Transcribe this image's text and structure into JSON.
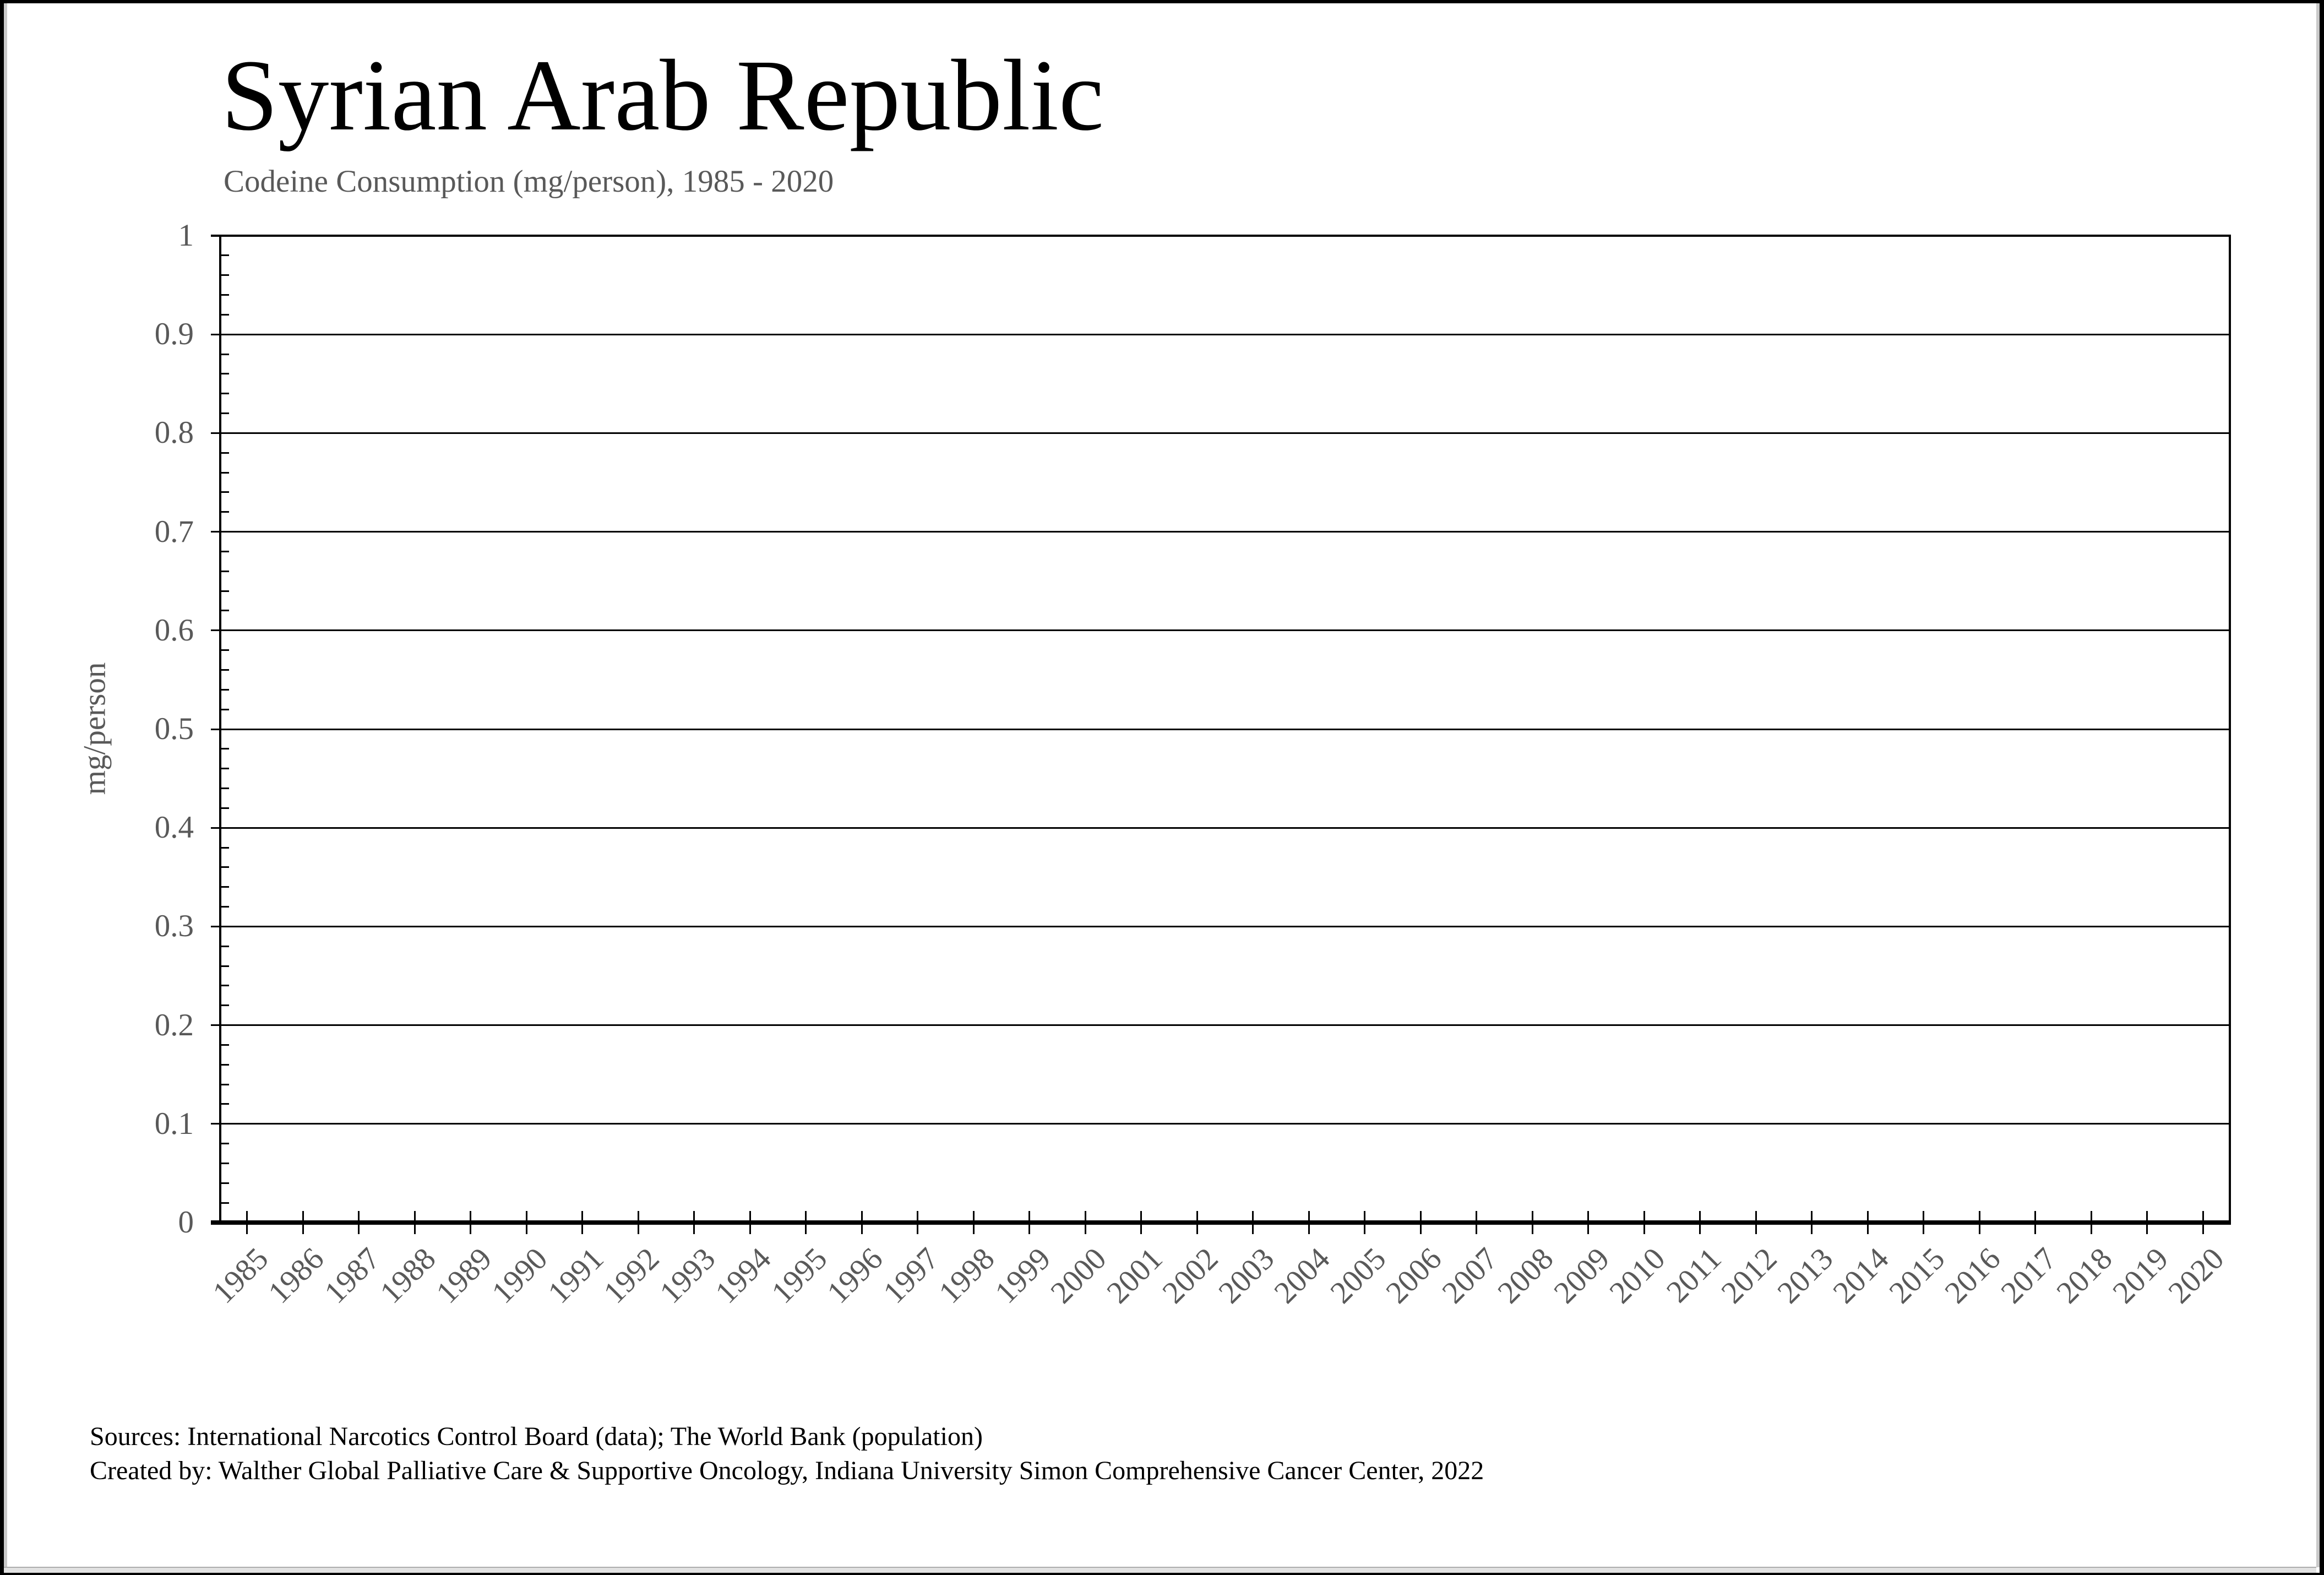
{
  "chart_data": {
    "type": "line",
    "title": "Syrian Arab Republic",
    "subtitle": "Codeine Consumption (mg/person), 1985 - 2020",
    "xlabel": "",
    "ylabel": "mg/person",
    "categories": [
      "1985",
      "1986",
      "1987",
      "1988",
      "1989",
      "1990",
      "1991",
      "1992",
      "1993",
      "1994",
      "1995",
      "1996",
      "1997",
      "1998",
      "1999",
      "2000",
      "2001",
      "2002",
      "2003",
      "2004",
      "2005",
      "2006",
      "2007",
      "2008",
      "2009",
      "2010",
      "2011",
      "2012",
      "2013",
      "2014",
      "2015",
      "2016",
      "2017",
      "2018",
      "2019",
      "2020"
    ],
    "series": [],
    "ylim": [
      0,
      1
    ],
    "yticks": [
      1,
      0.9,
      0.8,
      0.7,
      0.6,
      0.5,
      0.4,
      0.3,
      0.2,
      0.1,
      0
    ],
    "ytick_labels": [
      "1",
      "0.9",
      "0.8",
      "0.7",
      "0.6",
      "0.5",
      "0.4",
      "0.3",
      "0.2",
      "0.1",
      "0"
    ],
    "minor_ticks_per_major": 4,
    "grid": true,
    "legend": "none"
  },
  "footer": {
    "sources": "Sources: International Narcotics Control Board (data); The World Bank (population)",
    "created_by": "Created by: Walther Global Palliative Care & Supportive Oncology, Indiana University Simon Comprehensive Cancer Center, 2022"
  },
  "colors": {
    "title": "#000000",
    "subtitle": "#595959",
    "axis_labels": "#595959",
    "axis_lines": "#000000",
    "background": "#ffffff",
    "scrollbar_track": "#e2e2e2"
  }
}
